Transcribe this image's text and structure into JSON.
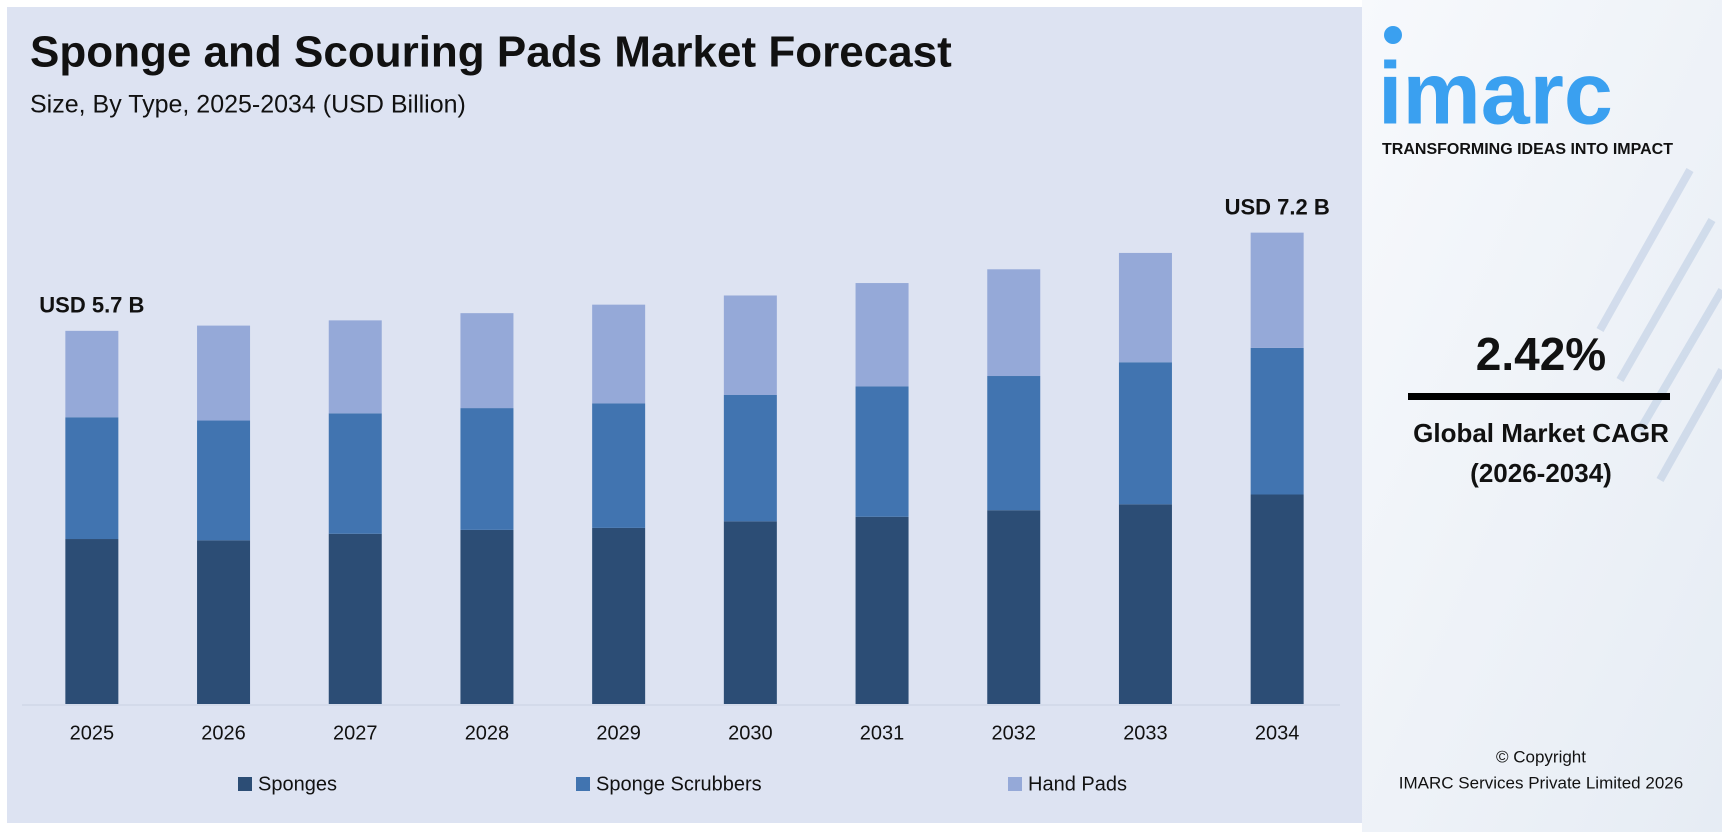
{
  "chart_data": {
    "type": "stacked_bar",
    "title": "Sponge and Scouring Pads Market Forecast",
    "subtitle": "Size, By Type, 2025-2034 (USD Billion)",
    "categories": [
      "2025",
      "2026",
      "2027",
      "2028",
      "2029",
      "2030",
      "2031",
      "2032",
      "2033",
      "2034"
    ],
    "series": [
      {
        "name": "Sponges",
        "color": "#2c4d75",
        "values": [
          2.52,
          2.5,
          2.6,
          2.66,
          2.69,
          2.79,
          2.86,
          2.96,
          3.05,
          3.2
        ]
      },
      {
        "name": "Sponge Scrubbers",
        "color": "#4174b0",
        "values": [
          1.86,
          1.83,
          1.84,
          1.86,
          1.9,
          1.93,
          1.99,
          2.05,
          2.17,
          2.24
        ]
      },
      {
        "name": "Hand Pads",
        "color": "#95a9d8",
        "values": [
          1.32,
          1.45,
          1.42,
          1.45,
          1.51,
          1.52,
          1.58,
          1.63,
          1.67,
          1.76
        ]
      }
    ],
    "annotations": [
      {
        "category": 0,
        "text": "USD 5.7 B"
      },
      {
        "category": 9,
        "text": "USD 7.2 B"
      }
    ],
    "ylim": [
      0,
      7.5
    ]
  },
  "side_panel": {
    "logo": "imarc",
    "tagline": "TRANSFORMING IDEAS INTO IMPACT",
    "cagr": "2.42%",
    "cagr_label": "Global Market CAGR",
    "cagr_period": "(2026-2034)",
    "copyright": "© Copyright",
    "company": "IMARC Services Private Limited 2026"
  }
}
